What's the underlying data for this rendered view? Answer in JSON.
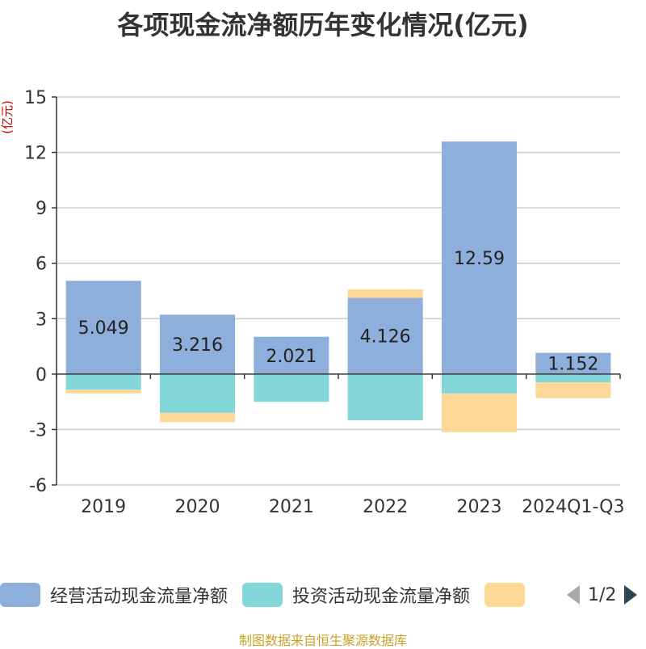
{
  "title": "各项现金流净额历年变化情况(亿元)",
  "source_note": "制图数据来自恒生聚源数据库",
  "legend": {
    "items": [
      {
        "label": "经营活动现金流量净额",
        "color": "#8eaedb"
      },
      {
        "label": "投资活动现金流量净额",
        "color": "#84d7d9"
      },
      {
        "label": "",
        "color": "#fdd896"
      }
    ],
    "page_text": "1/2"
  },
  "chart_data": {
    "type": "bar",
    "stacked": true,
    "title": "各项现金流净额历年变化情况(亿元)",
    "ylabel": "(亿元)",
    "ylim": [
      -6,
      15
    ],
    "yticks": [
      15,
      12,
      9,
      6,
      3,
      0,
      -3,
      -6
    ],
    "categories": [
      "2019",
      "2020",
      "2021",
      "2022",
      "2023",
      "2024Q1-Q3"
    ],
    "grid": true,
    "legend_position": "bottom",
    "series": [
      {
        "name": "经营活动现金流量净额",
        "color": "#8eaedb",
        "values": [
          5.049,
          3.216,
          2.021,
          4.126,
          12.59,
          1.152
        ],
        "labels": [
          "5.049",
          "3.216",
          "2.021",
          "4.126",
          "12.59",
          "1.152"
        ]
      },
      {
        "name": "投资活动现金流量净额",
        "color": "#84d7d9",
        "values": [
          -0.85,
          -2.1,
          -1.5,
          -2.5,
          -1.05,
          -0.45
        ]
      },
      {
        "color": "#fdd896",
        "values": [
          -0.2,
          -0.5,
          0,
          0.45,
          -2.1,
          -0.85
        ]
      }
    ]
  }
}
